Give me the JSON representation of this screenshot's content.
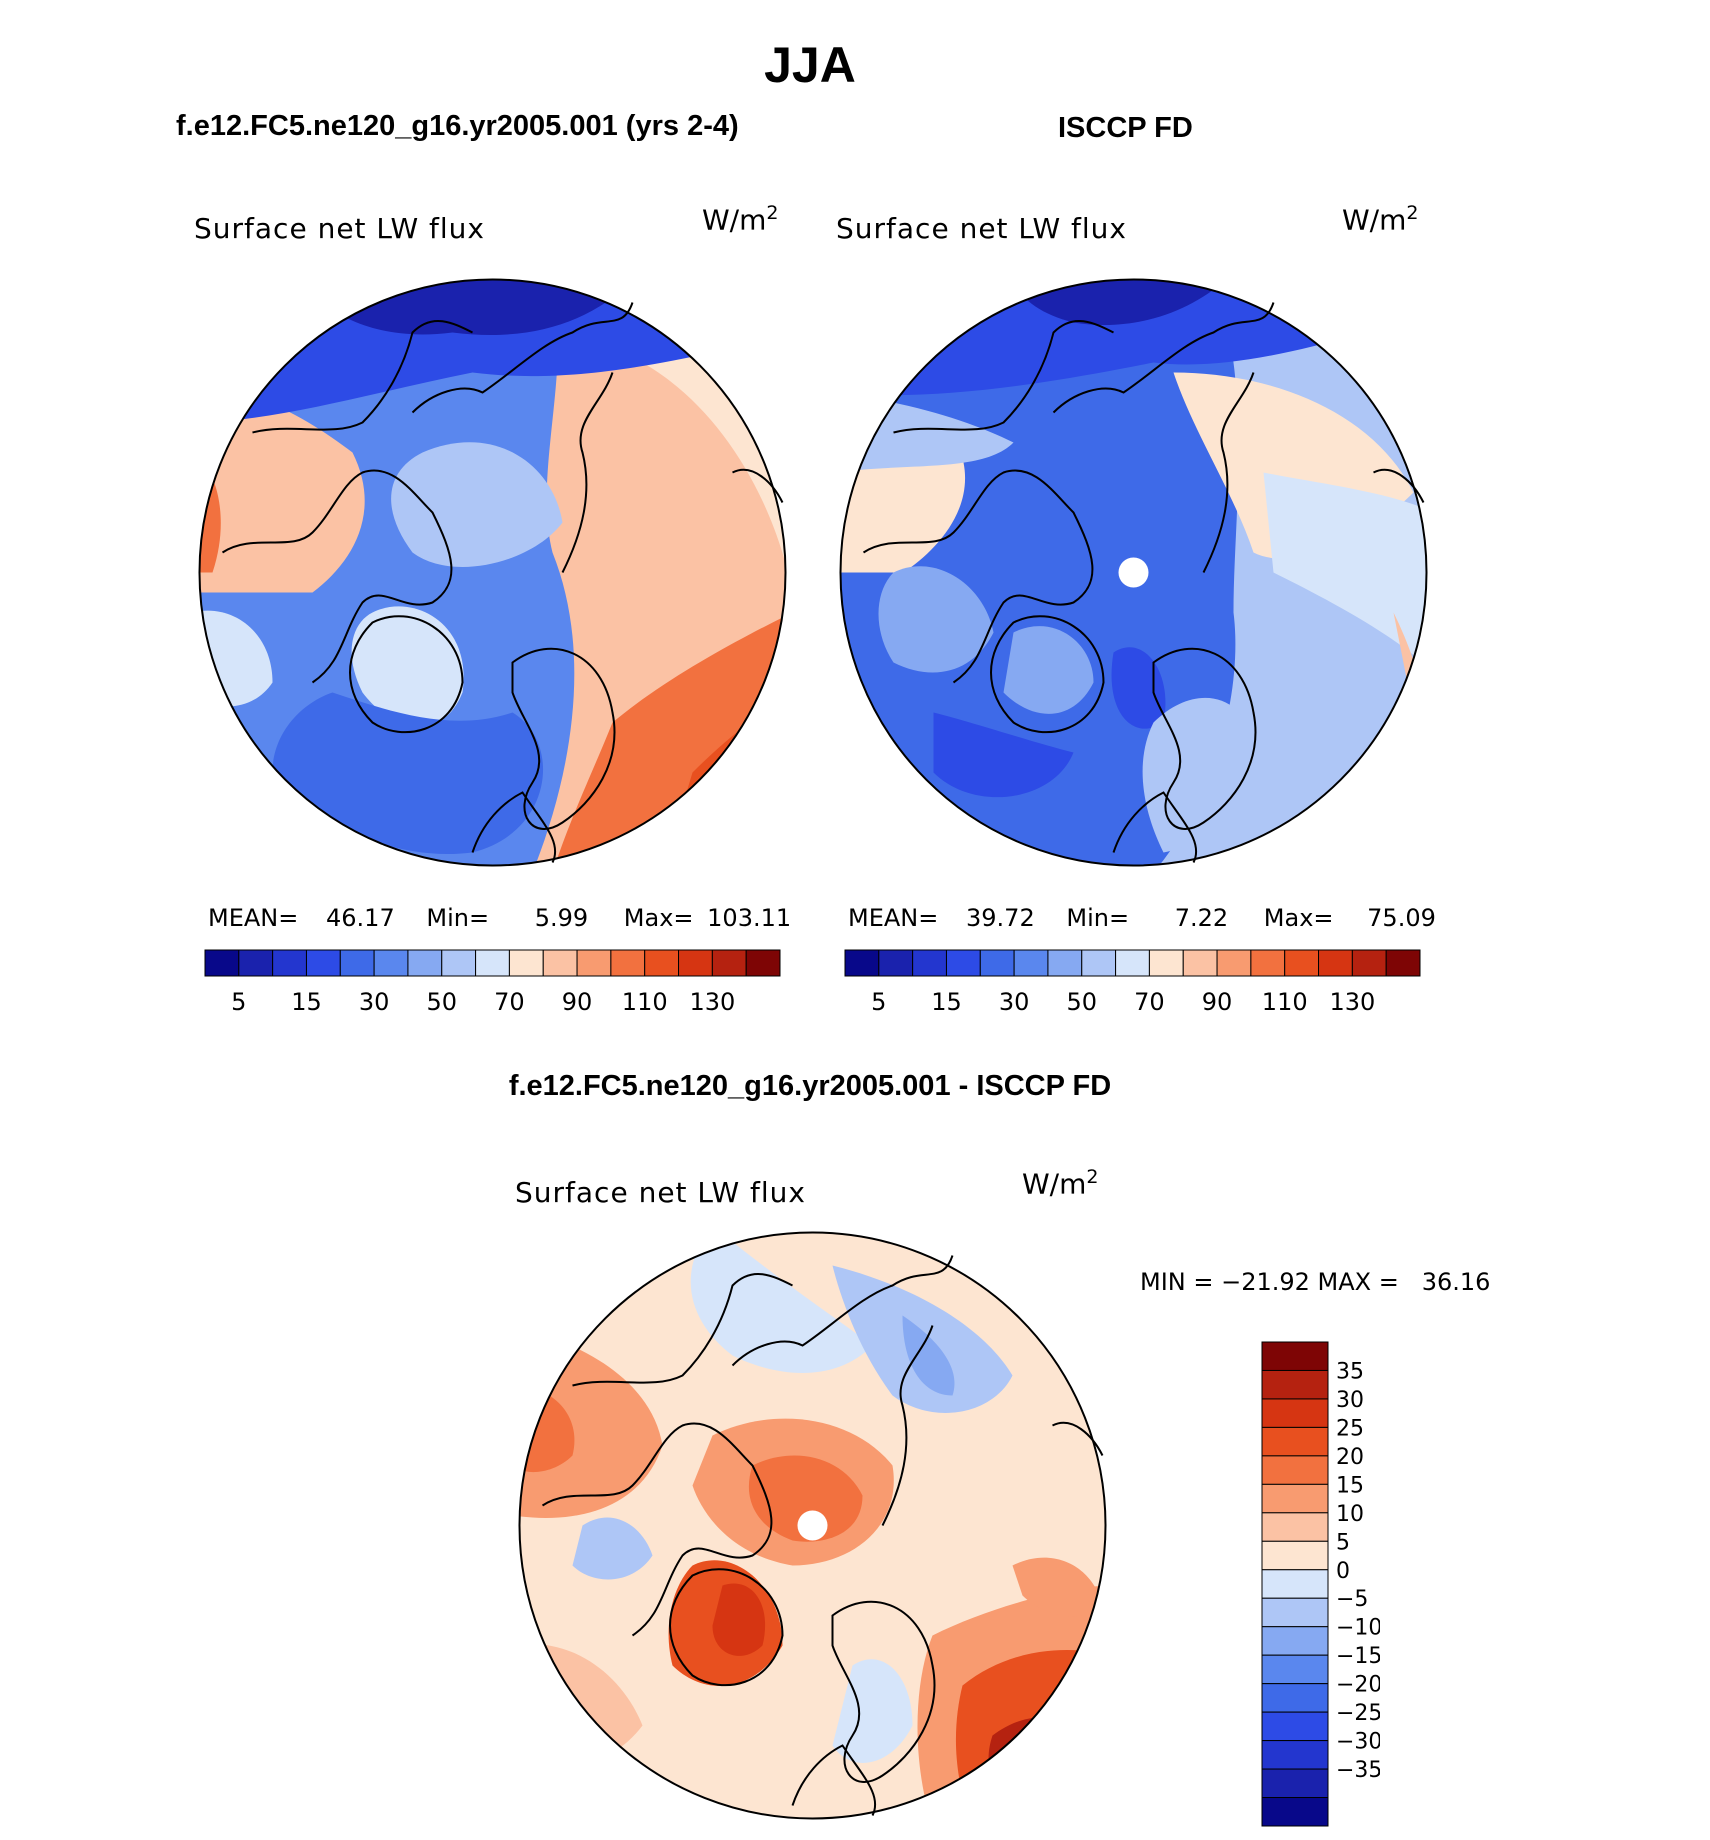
{
  "page": {
    "title": "JJA",
    "colors": {
      "coastline": "#000000",
      "pole_mask": "#ffffff",
      "bar_outline": "#000000"
    }
  },
  "chart_data": [
    {
      "type": "heatmap",
      "projection": "north-polar-stereographic",
      "title": "f.e12.FC5.ne120_g16.yr2005.001 (yrs 2-4)",
      "field_label": "Surface net LW flux",
      "units_prefix": "W/m",
      "units_power": "2",
      "stats": [
        {
          "label": "MEAN=",
          "value": "46.17"
        },
        {
          "label": "Min=",
          "value": "5.99"
        },
        {
          "label": "Max=",
          "value": "103.11"
        }
      ],
      "colorbar": {
        "orientation": "horizontal",
        "levels": [
          5,
          10,
          15,
          20,
          30,
          40,
          50,
          60,
          70,
          80,
          90,
          100,
          110,
          120,
          130
        ],
        "tick_labels": [
          "5",
          "15",
          "30",
          "50",
          "70",
          "90",
          "110",
          "130"
        ],
        "colors": [
          "#08088a",
          "#1a22ad",
          "#2336cf",
          "#2d4be6",
          "#3e6ae8",
          "#5a87ee",
          "#86a9f2",
          "#aec6f6",
          "#d6e5fa",
          "#fde5d1",
          "#fbc2a4",
          "#f89b70",
          "#f2713f",
          "#e8501f",
          "#d63512",
          "#b52210",
          "#7e0505"
        ]
      }
    },
    {
      "type": "heatmap",
      "projection": "north-polar-stereographic",
      "title": "ISCCP FD",
      "field_label": "Surface net LW flux",
      "units_prefix": "W/m",
      "units_power": "2",
      "stats": [
        {
          "label": "MEAN=",
          "value": "39.72"
        },
        {
          "label": "Min=",
          "value": "7.22"
        },
        {
          "label": "Max=",
          "value": "75.09"
        }
      ],
      "colorbar": {
        "orientation": "horizontal",
        "levels": [
          5,
          10,
          15,
          20,
          30,
          40,
          50,
          60,
          70,
          80,
          90,
          100,
          110,
          120,
          130
        ],
        "tick_labels": [
          "5",
          "15",
          "30",
          "50",
          "70",
          "90",
          "110",
          "130"
        ],
        "colors": [
          "#08088a",
          "#1a22ad",
          "#2336cf",
          "#2d4be6",
          "#3e6ae8",
          "#5a87ee",
          "#86a9f2",
          "#aec6f6",
          "#d6e5fa",
          "#fde5d1",
          "#fbc2a4",
          "#f89b70",
          "#f2713f",
          "#e8501f",
          "#d63512",
          "#b52210",
          "#7e0505"
        ]
      }
    },
    {
      "type": "heatmap",
      "projection": "north-polar-stereographic",
      "title": "f.e12.FC5.ne120_g16.yr2005.001 - ISCCP FD",
      "field_label": "Surface net LW flux",
      "units_prefix": "W/m",
      "units_power": "2",
      "stats_line": "MIN = −21.92 MAX =   36.16",
      "colorbar": {
        "orientation": "vertical",
        "tick_labels_top_to_bottom": [
          "35",
          "30",
          "25",
          "20",
          "15",
          "10",
          "5",
          "0",
          "−5",
          "−10",
          "−15",
          "−20",
          "−25",
          "−30",
          "−35"
        ],
        "colors_top_to_bottom": [
          "#7e0505",
          "#b52210",
          "#d63512",
          "#e8501f",
          "#f2713f",
          "#f89b70",
          "#fbc2a4",
          "#fde5d1",
          "#d6e5fa",
          "#aec6f6",
          "#86a9f2",
          "#5a87ee",
          "#3e6ae8",
          "#2d4be6",
          "#2336cf",
          "#1a22ad",
          "#08088a"
        ]
      }
    }
  ]
}
